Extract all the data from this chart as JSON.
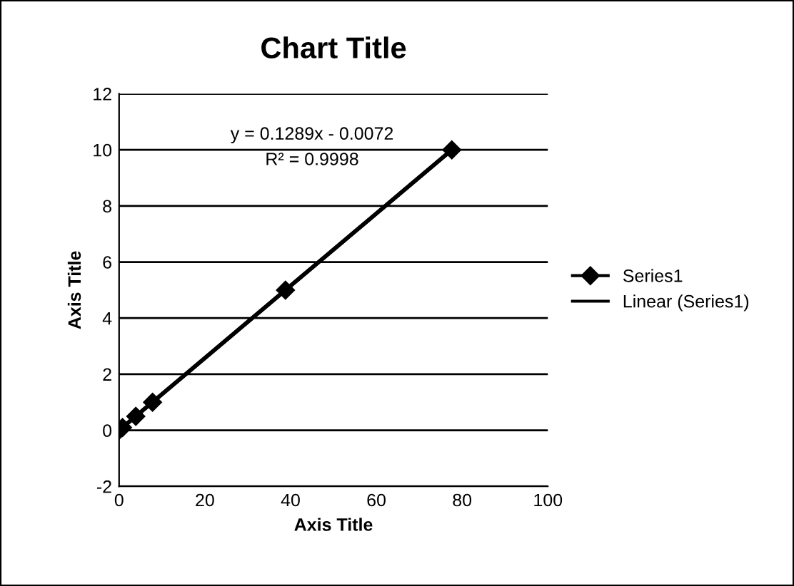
{
  "chart_data": {
    "type": "line",
    "title": "Chart Title",
    "xlabel": "Axis Title",
    "ylabel": "Axis Title",
    "series": [
      {
        "name": "Series1",
        "color": "#000000",
        "marker": "diamond",
        "x": [
          0,
          0.8,
          3.9,
          7.8,
          38.8,
          77.6
        ],
        "values": [
          0,
          0.1,
          0.5,
          1,
          5,
          10
        ]
      },
      {
        "name": "Linear (Series1)",
        "type": "line",
        "color": "#000000",
        "marker": "none",
        "x": [
          0,
          77.6
        ],
        "values": [
          0,
          10
        ]
      }
    ],
    "annotations": [
      "y = 0.1289x - 0.0072",
      "R² = 0.9998"
    ],
    "xlim": [
      0,
      100
    ],
    "xticks": [
      0,
      20,
      40,
      60,
      80,
      100
    ],
    "ylim": [
      -2,
      12
    ],
    "yticks": [
      -2,
      0,
      2,
      4,
      6,
      8,
      10,
      12
    ],
    "grid": "y",
    "legend": "right"
  }
}
